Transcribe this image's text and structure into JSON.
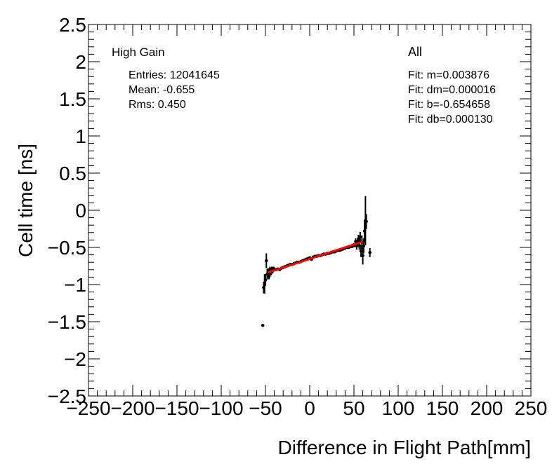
{
  "chart_data": {
    "type": "scatter",
    "xlabel": "Difference in Flight Path[mm]",
    "ylabel": "Cell time [ns]",
    "xlim": [
      -250,
      250
    ],
    "ylim": [
      -2.5,
      2.5
    ],
    "x_ticks": [
      -250,
      -200,
      -150,
      -100,
      -50,
      0,
      50,
      100,
      150,
      200,
      250
    ],
    "x_tick_labels": [
      "−250",
      "−200",
      "−150",
      "−100",
      "−50",
      "0",
      "50",
      "100",
      "150",
      "200",
      "250"
    ],
    "y_ticks": [
      -2.5,
      -2,
      -1.5,
      -1,
      -0.5,
      0,
      0.5,
      1,
      1.5,
      2,
      2.5
    ],
    "y_tick_labels": [
      "−2.5",
      "−2",
      "−1.5",
      "−1",
      "−0.5",
      "0",
      "0.5",
      "1",
      "1.5",
      "2",
      "2.5"
    ],
    "grid": false,
    "annotations": {
      "gain": "High Gain",
      "entries": "Entries: 12041645",
      "mean": "Mean: -0.655",
      "rms": "Rms: 0.450",
      "selection": "All",
      "fit_m": "Fit: m=0.003876",
      "fit_dm": "Fit: dm=0.000016",
      "fit_b": "Fit: b=-0.654658",
      "fit_db": "Fit: db=0.000130"
    },
    "fit_line": {
      "x": [
        -47,
        60
      ],
      "color": "#ff0000"
    },
    "points": [
      {
        "x": -53,
        "y": -1.55,
        "err": 0.0
      },
      {
        "x": -52,
        "y": -1.04,
        "err": 0.08
      },
      {
        "x": -51,
        "y": -0.99,
        "err": 0.13
      },
      {
        "x": -50,
        "y": -0.94,
        "err": 0.08
      },
      {
        "x": -49,
        "y": -0.68,
        "err": 0.1
      },
      {
        "x": -48,
        "y": -0.86,
        "err": 0.07
      },
      {
        "x": -47,
        "y": -0.83,
        "err": 0.05
      },
      {
        "x": -46,
        "y": -0.89,
        "err": 0.04
      },
      {
        "x": -45,
        "y": -0.8,
        "err": 0.04
      },
      {
        "x": -44,
        "y": -0.85,
        "err": 0.03
      },
      {
        "x": -43,
        "y": -0.79,
        "err": 0.03
      },
      {
        "x": -42,
        "y": -0.82,
        "err": 0.03
      },
      {
        "x": -41,
        "y": -0.78,
        "err": 0.02
      },
      {
        "x": -40,
        "y": -0.8,
        "err": 0.02
      },
      {
        "x": -38,
        "y": -0.8,
        "err": 0.02
      },
      {
        "x": -36,
        "y": -0.79,
        "err": 0.01
      },
      {
        "x": -34,
        "y": -0.8,
        "err": 0.01
      },
      {
        "x": -32,
        "y": -0.78,
        "err": 0.01
      },
      {
        "x": -30,
        "y": -0.77,
        "err": 0.01
      },
      {
        "x": -28,
        "y": -0.76,
        "err": 0.01
      },
      {
        "x": -26,
        "y": -0.75,
        "err": 0.01
      },
      {
        "x": -24,
        "y": -0.74,
        "err": 0.01
      },
      {
        "x": -22,
        "y": -0.73,
        "err": 0.01
      },
      {
        "x": -20,
        "y": -0.73,
        "err": 0.01
      },
      {
        "x": -18,
        "y": -0.72,
        "err": 0.01
      },
      {
        "x": -16,
        "y": -0.71,
        "err": 0.01
      },
      {
        "x": -14,
        "y": -0.7,
        "err": 0.01
      },
      {
        "x": -12,
        "y": -0.7,
        "err": 0.01
      },
      {
        "x": -10,
        "y": -0.69,
        "err": 0.01
      },
      {
        "x": -8,
        "y": -0.68,
        "err": 0.01
      },
      {
        "x": -6,
        "y": -0.67,
        "err": 0.01
      },
      {
        "x": -4,
        "y": -0.66,
        "err": 0.01
      },
      {
        "x": -2,
        "y": -0.65,
        "err": 0.01
      },
      {
        "x": 0,
        "y": -0.64,
        "err": 0.01
      },
      {
        "x": 2,
        "y": -0.66,
        "err": 0.01
      },
      {
        "x": 4,
        "y": -0.63,
        "err": 0.01
      },
      {
        "x": 6,
        "y": -0.62,
        "err": 0.01
      },
      {
        "x": 8,
        "y": -0.62,
        "err": 0.01
      },
      {
        "x": 10,
        "y": -0.61,
        "err": 0.01
      },
      {
        "x": 12,
        "y": -0.61,
        "err": 0.01
      },
      {
        "x": 14,
        "y": -0.6,
        "err": 0.01
      },
      {
        "x": 16,
        "y": -0.59,
        "err": 0.01
      },
      {
        "x": 18,
        "y": -0.59,
        "err": 0.01
      },
      {
        "x": 20,
        "y": -0.58,
        "err": 0.01
      },
      {
        "x": 22,
        "y": -0.58,
        "err": 0.01
      },
      {
        "x": 24,
        "y": -0.57,
        "err": 0.01
      },
      {
        "x": 26,
        "y": -0.56,
        "err": 0.01
      },
      {
        "x": 28,
        "y": -0.56,
        "err": 0.01
      },
      {
        "x": 30,
        "y": -0.55,
        "err": 0.01
      },
      {
        "x": 32,
        "y": -0.54,
        "err": 0.01
      },
      {
        "x": 34,
        "y": -0.54,
        "err": 0.01
      },
      {
        "x": 36,
        "y": -0.53,
        "err": 0.01
      },
      {
        "x": 38,
        "y": -0.52,
        "err": 0.01
      },
      {
        "x": 40,
        "y": -0.51,
        "err": 0.02
      },
      {
        "x": 42,
        "y": -0.5,
        "err": 0.02
      },
      {
        "x": 44,
        "y": -0.5,
        "err": 0.02
      },
      {
        "x": 46,
        "y": -0.49,
        "err": 0.02
      },
      {
        "x": 48,
        "y": -0.48,
        "err": 0.03
      },
      {
        "x": 50,
        "y": -0.47,
        "err": 0.03
      },
      {
        "x": 52,
        "y": -0.42,
        "err": 0.04
      },
      {
        "x": 53,
        "y": -0.48,
        "err": 0.05
      },
      {
        "x": 54,
        "y": -0.44,
        "err": 0.05
      },
      {
        "x": 55,
        "y": -0.39,
        "err": 0.06
      },
      {
        "x": 56,
        "y": -0.47,
        "err": 0.06
      },
      {
        "x": 57,
        "y": -0.36,
        "err": 0.07
      },
      {
        "x": 58,
        "y": -0.55,
        "err": 0.08
      },
      {
        "x": 59,
        "y": -0.43,
        "err": 0.09
      },
      {
        "x": 60,
        "y": -0.61,
        "err": 0.12
      },
      {
        "x": 61,
        "y": -0.48,
        "err": 0.1
      },
      {
        "x": 62,
        "y": -0.28,
        "err": 0.15
      },
      {
        "x": 63,
        "y": -0.14,
        "err": 0.33
      },
      {
        "x": 64,
        "y": -0.15,
        "err": 0.1
      },
      {
        "x": 68,
        "y": -0.57,
        "err": 0.06
      }
    ]
  }
}
